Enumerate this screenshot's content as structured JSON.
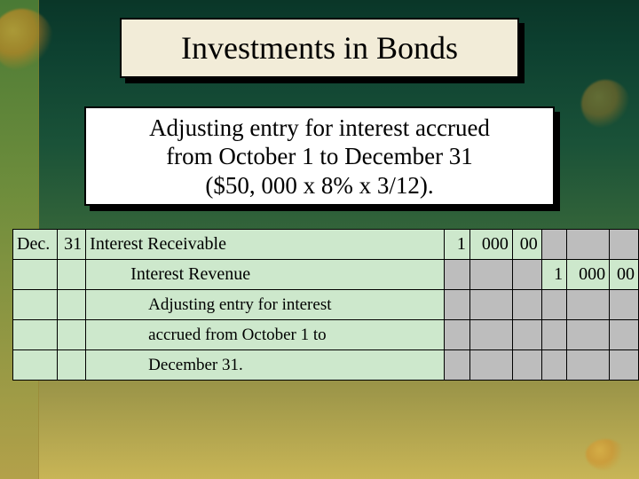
{
  "colors": {
    "panel_bg": "#f2ecd8",
    "subtitle_bg": "#ffffff",
    "ledger_bg": "#cde8cc",
    "grey_cell": "#bdbdbd",
    "border": "#000000",
    "text": "#000000"
  },
  "title": "Investments in Bonds",
  "subtitle": {
    "line1": "Adjusting entry for interest accrued",
    "line2": "from October 1 to December 31",
    "line3": "($50, 000 x 8% x 3/12)."
  },
  "ledger": {
    "rows": [
      {
        "month": "Dec.",
        "day": "31",
        "desc": "Interest Receivable",
        "debit": {
          "th": "1",
          "hun": "000",
          "cent": "00"
        },
        "credit": {
          "th": "",
          "hun": "",
          "cent": ""
        }
      },
      {
        "month": "",
        "day": "",
        "desc": "Interest Revenue",
        "debit": {
          "th": "",
          "hun": "",
          "cent": ""
        },
        "credit": {
          "th": "1",
          "hun": "000",
          "cent": "00"
        }
      },
      {
        "month": "",
        "day": "",
        "desc": "Adjusting entry for interest",
        "debit": {
          "th": "",
          "hun": "",
          "cent": ""
        },
        "credit": {
          "th": "",
          "hun": "",
          "cent": ""
        }
      },
      {
        "month": "",
        "day": "",
        "desc": "accrued from October 1 to",
        "debit": {
          "th": "",
          "hun": "",
          "cent": ""
        },
        "credit": {
          "th": "",
          "hun": "",
          "cent": ""
        }
      },
      {
        "month": "",
        "day": "",
        "desc": "December 31.",
        "debit": {
          "th": "",
          "hun": "",
          "cent": ""
        },
        "credit": {
          "th": "",
          "hun": "",
          "cent": ""
        }
      }
    ]
  }
}
